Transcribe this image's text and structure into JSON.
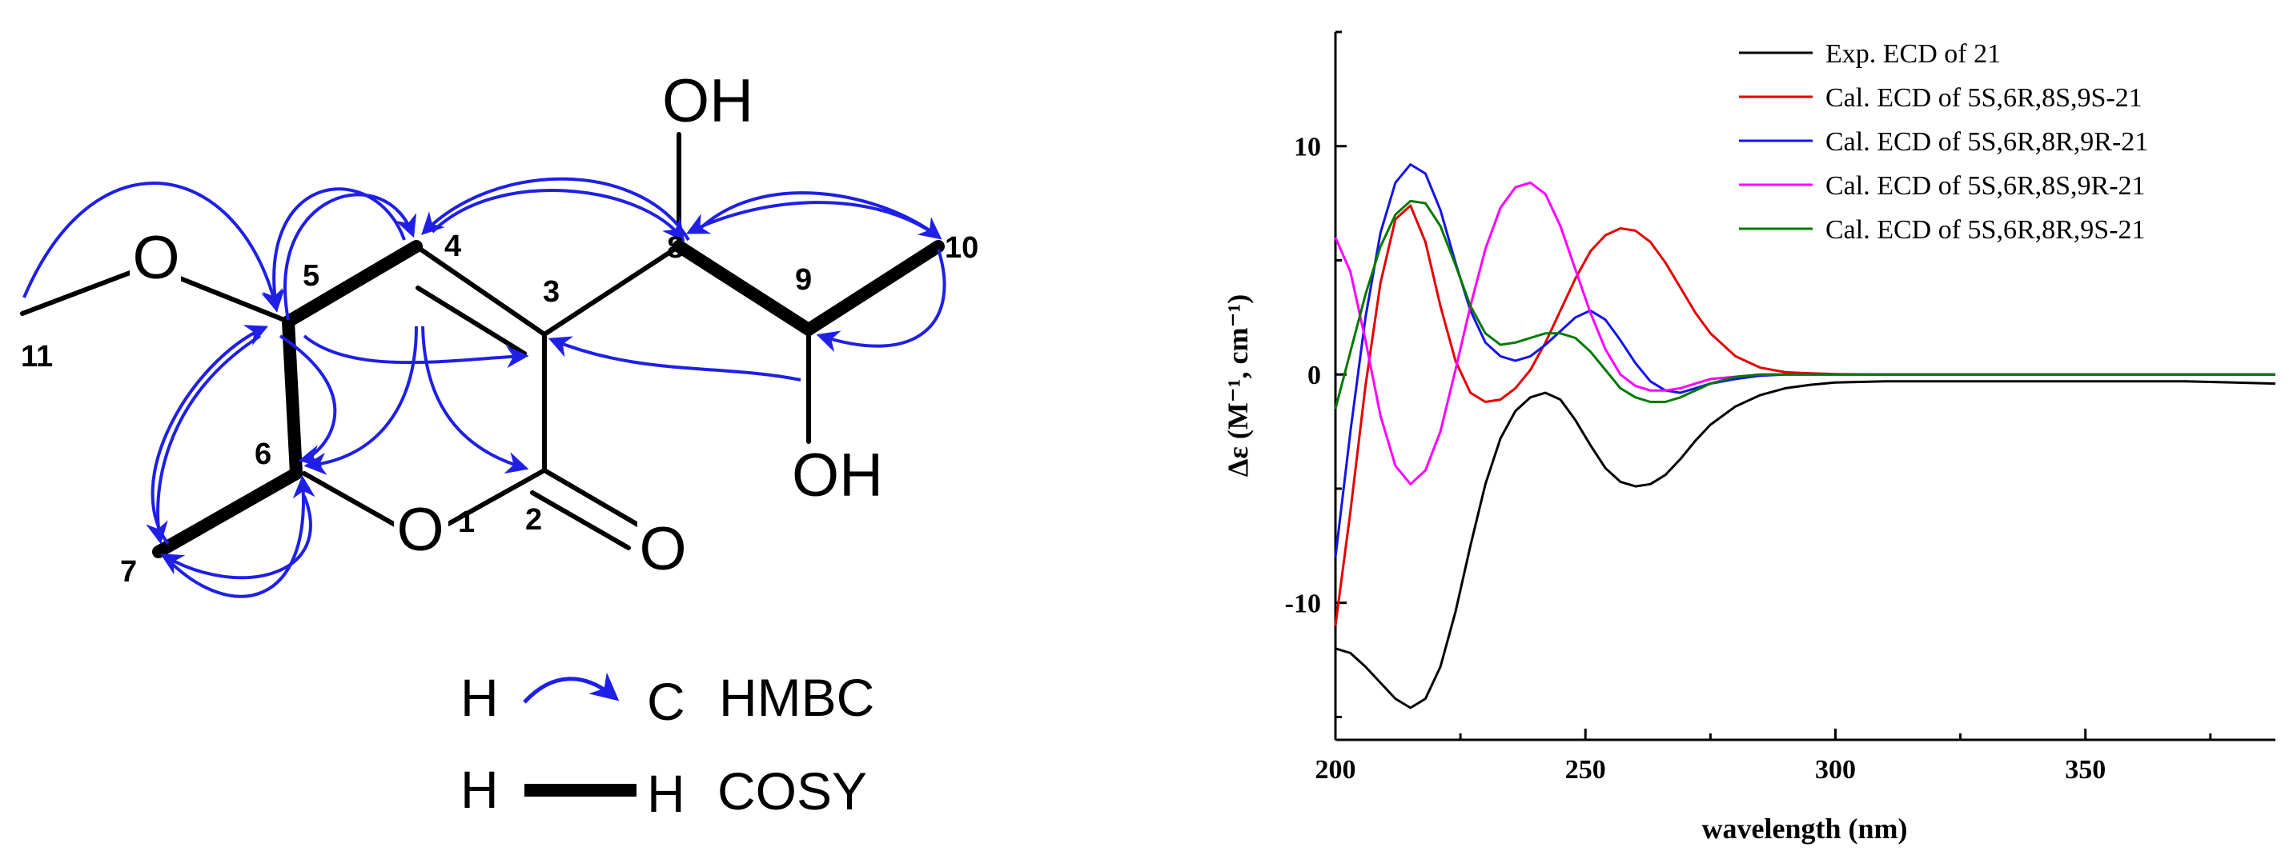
{
  "structure": {
    "atoms": {
      "o_methoxy": "O",
      "o_ring": "O",
      "o_carbonyl": "O",
      "oh_top": "OH",
      "oh_bottom": "OH"
    },
    "numbers": {
      "n1": "1",
      "n2": "2",
      "n3": "3",
      "n4": "4",
      "n5": "5",
      "n6": "6",
      "n7": "7",
      "n8": "8",
      "n9": "9",
      "n10": "10",
      "n11": "11"
    },
    "legend": {
      "hmbc_h": "H",
      "hmbc_c": "C",
      "hmbc_label": "HMBC",
      "cosy_h1": "H",
      "cosy_h2": "H",
      "cosy_label": "COSY"
    },
    "colors": {
      "arrow": "#1f1fe6",
      "bond": "#000000"
    }
  },
  "chart_data": {
    "type": "line",
    "xlabel": "wavelength (nm)",
    "ylabel": "Δε (M⁻¹, cm⁻¹)",
    "xlim": [
      200,
      388
    ],
    "ylim": [
      -16,
      15
    ],
    "xticks": [
      200,
      250,
      300,
      350
    ],
    "yticks": [
      10,
      0,
      -10
    ],
    "grid": false,
    "legend_position": "top-right",
    "series": [
      {
        "name": "Exp. ECD of 21",
        "color": "#000000",
        "x": [
          200,
          203,
          206,
          209,
          212,
          215,
          218,
          221,
          224,
          227,
          230,
          233,
          236,
          239,
          242,
          245,
          248,
          251,
          254,
          257,
          260,
          263,
          266,
          269,
          272,
          275,
          280,
          285,
          290,
          295,
          300,
          310,
          330,
          350,
          370,
          388
        ],
        "y": [
          -12.0,
          -12.2,
          -12.8,
          -13.5,
          -14.2,
          -14.6,
          -14.2,
          -12.8,
          -10.4,
          -7.5,
          -4.8,
          -2.8,
          -1.6,
          -1.0,
          -0.8,
          -1.1,
          -2.0,
          -3.1,
          -4.1,
          -4.7,
          -4.9,
          -4.8,
          -4.4,
          -3.7,
          -2.9,
          -2.2,
          -1.4,
          -0.9,
          -0.6,
          -0.45,
          -0.35,
          -0.3,
          -0.3,
          -0.3,
          -0.3,
          -0.4
        ]
      },
      {
        "name": "Cal. ECD of 5S,6R,8S,9S-21",
        "color": "#e60000",
        "x": [
          200,
          203,
          206,
          209,
          212,
          215,
          218,
          221,
          224,
          227,
          230,
          233,
          236,
          239,
          242,
          245,
          248,
          251,
          254,
          257,
          260,
          263,
          266,
          269,
          272,
          275,
          280,
          285,
          290,
          295,
          300,
          310,
          330,
          350,
          388
        ],
        "y": [
          -11.0,
          -6.0,
          -0.5,
          4.0,
          6.8,
          7.4,
          5.8,
          3.0,
          0.6,
          -0.8,
          -1.2,
          -1.1,
          -0.6,
          0.2,
          1.4,
          2.8,
          4.2,
          5.4,
          6.1,
          6.4,
          6.3,
          5.8,
          4.9,
          3.8,
          2.7,
          1.8,
          0.8,
          0.3,
          0.1,
          0.05,
          0.02,
          0.0,
          0.0,
          0.0,
          0.0
        ]
      },
      {
        "name": "Cal. ECD of 5S,6R,8R,9R-21",
        "color": "#1414e6",
        "x": [
          200,
          203,
          206,
          209,
          212,
          215,
          218,
          221,
          224,
          227,
          230,
          233,
          236,
          239,
          242,
          245,
          248,
          251,
          254,
          257,
          260,
          263,
          266,
          269,
          272,
          275,
          280,
          285,
          290,
          295,
          300,
          310,
          330,
          350,
          388
        ],
        "y": [
          -8.0,
          -2.5,
          2.5,
          6.2,
          8.4,
          9.2,
          8.8,
          7.2,
          4.9,
          2.8,
          1.4,
          0.8,
          0.6,
          0.8,
          1.3,
          1.9,
          2.5,
          2.8,
          2.4,
          1.5,
          0.5,
          -0.3,
          -0.7,
          -0.8,
          -0.6,
          -0.4,
          -0.2,
          -0.05,
          0.0,
          0.0,
          0.0,
          0.0,
          0.0,
          0.0,
          0.0
        ]
      },
      {
        "name": "Cal. ECD of 5S,6R,8S,9R-21",
        "color": "#ff00ff",
        "x": [
          200,
          203,
          206,
          209,
          212,
          215,
          218,
          221,
          224,
          227,
          230,
          233,
          236,
          239,
          242,
          245,
          248,
          251,
          254,
          257,
          260,
          263,
          266,
          269,
          272,
          275,
          280,
          285,
          290,
          295,
          300,
          310,
          330,
          350,
          388
        ],
        "y": [
          6.0,
          4.5,
          1.5,
          -1.8,
          -4.0,
          -4.8,
          -4.2,
          -2.5,
          0.2,
          3.0,
          5.5,
          7.3,
          8.2,
          8.4,
          7.9,
          6.5,
          4.6,
          2.7,
          1.1,
          0.0,
          -0.5,
          -0.7,
          -0.7,
          -0.6,
          -0.4,
          -0.2,
          -0.1,
          0.0,
          0.0,
          0.0,
          0.0,
          0.0,
          0.0,
          0.0,
          0.0
        ]
      },
      {
        "name": "Cal. ECD of 5S,6R,8R,9S-21",
        "color": "#007a00",
        "x": [
          200,
          203,
          206,
          209,
          212,
          215,
          218,
          221,
          224,
          227,
          230,
          233,
          236,
          239,
          242,
          245,
          248,
          251,
          254,
          257,
          260,
          263,
          266,
          269,
          272,
          275,
          280,
          285,
          290,
          295,
          300,
          310,
          330,
          350,
          388
        ],
        "y": [
          -1.5,
          1.0,
          3.5,
          5.6,
          7.0,
          7.6,
          7.5,
          6.5,
          4.8,
          3.0,
          1.8,
          1.3,
          1.4,
          1.6,
          1.8,
          1.8,
          1.6,
          1.0,
          0.2,
          -0.6,
          -1.0,
          -1.2,
          -1.2,
          -1.0,
          -0.7,
          -0.4,
          -0.1,
          0.0,
          0.0,
          0.0,
          0.0,
          0.0,
          0.0,
          0.0,
          0.0
        ]
      }
    ]
  }
}
